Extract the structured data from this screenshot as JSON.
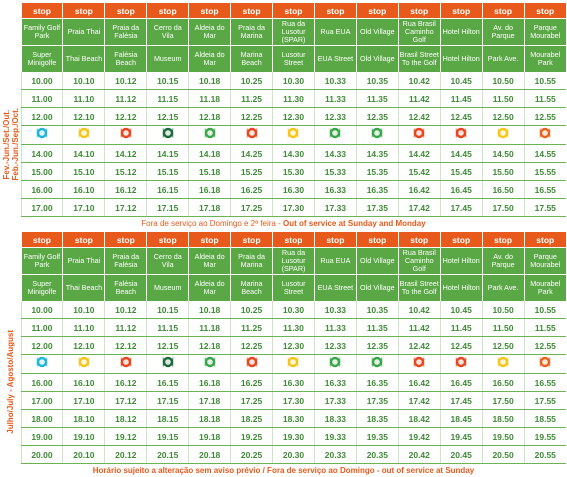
{
  "sections": [
    {
      "period": [
        "Fev.-Jun./Set./Out.",
        "Feb.-Jun./Sep./Oct."
      ],
      "header": [
        "stop",
        "stop",
        "stop",
        "stop",
        "stop",
        "stop",
        "stop",
        "stop",
        "stop",
        "stop",
        "stop",
        "stop",
        "stop"
      ],
      "names_pt": [
        "Family Golf Park",
        "Praia Thai",
        "Praia da Falésia",
        "Cerro da Vila",
        "Aldeia do Mar",
        "Praia da Marina",
        "Rua da Lusotur (SPAR)",
        "Rua EUA",
        "Old Village",
        "Rua Brasil Caminho Golf",
        "Hotel Hilton",
        "Av. do Parque",
        "Parque Mourabel"
      ],
      "names_en": [
        "Super Minigolfe",
        "Thai Beach",
        "Falésia Beach",
        "Museum",
        "Aldeia do Mar",
        "Marina Beach",
        "Lusotur Street",
        "EUA Street",
        "Old Village",
        "Brasil Street To the Golf",
        "Hotel Hilton",
        "Park Ave.",
        "Mourabel Park"
      ],
      "before_lunch": [
        [
          "10.00",
          "10.10",
          "10.12",
          "10.15",
          "10.18",
          "10.25",
          "10.30",
          "10.33",
          "10.35",
          "10.42",
          "10.45",
          "10.50",
          "10.55"
        ],
        [
          "11.00",
          "11.10",
          "11.12",
          "11.15",
          "11.18",
          "11.25",
          "11.30",
          "11.33",
          "11.35",
          "11.42",
          "11.45",
          "11.50",
          "11.55"
        ],
        [
          "12.00",
          "12.10",
          "12.12",
          "12.15",
          "12.18",
          "12.25",
          "12.30",
          "12.33",
          "12.35",
          "12.42",
          "12.45",
          "12.50",
          "12.55"
        ]
      ],
      "after_lunch": [
        [
          "14.00",
          "14.10",
          "14.12",
          "14.15",
          "14.18",
          "14.25",
          "14.30",
          "14.33",
          "14.35",
          "14.42",
          "14.45",
          "14.50",
          "14.55"
        ],
        [
          "15.00",
          "15.10",
          "15.12",
          "15.15",
          "15.18",
          "15.25",
          "15.30",
          "15.33",
          "15.35",
          "15.42",
          "15.45",
          "15.50",
          "15.55"
        ],
        [
          "16.00",
          "16.10",
          "16.12",
          "16.15",
          "16.18",
          "16.25",
          "16.30",
          "16.33",
          "16.35",
          "16.42",
          "16.45",
          "16.50",
          "16.55"
        ],
        [
          "17.00",
          "17.10",
          "17.12",
          "17.15",
          "17.18",
          "17.25",
          "17.30",
          "17.33",
          "17.35",
          "17.42",
          "17.45",
          "17.50",
          "17.55"
        ]
      ],
      "note": [
        "Fora de serviço ao Domingo e 2ª feira - ",
        "Out of service at Sunday and Monday"
      ]
    },
    {
      "period": [
        "Julho/July - Agosto/August"
      ],
      "header": [
        "stop",
        "stop",
        "stop",
        "stop",
        "stop",
        "stop",
        "stop",
        "stop",
        "stop",
        "stop",
        "stop",
        "stop",
        "stop"
      ],
      "names_pt": [
        "Family Golf Park",
        "Praia Thai",
        "Praia da Falésia",
        "Cerro da Vila",
        "Aldeia do Mar",
        "Praia da Marina",
        "Rua da Lusotur (SPAR)",
        "Rua EUA",
        "Old Village",
        "Rua Brasil Caminho Golf",
        "Hotel Hilton",
        "Av. do Parque",
        "Parque Mourabel"
      ],
      "names_en": [
        "Super Minigolfe",
        "Thai Beach",
        "Falésia Beach",
        "Museum",
        "Aldeia do Mar",
        "Marina Beach",
        "Lusotur Street",
        "EUA Street",
        "Old Village",
        "Brasil Street To the Golf",
        "Hotel Hilton",
        "Park Ave.",
        "Mourabel Park"
      ],
      "before_lunch": [
        [
          "10.00",
          "10.10",
          "10.12",
          "10.15",
          "10.18",
          "10.25",
          "10.30",
          "10.33",
          "10.35",
          "10.42",
          "10.45",
          "10.50",
          "10.55"
        ],
        [
          "11.00",
          "11.10",
          "11.12",
          "11.15",
          "11.18",
          "11.25",
          "11.30",
          "11.33",
          "11.35",
          "11.42",
          "11.45",
          "11.50",
          "11.55"
        ],
        [
          "12.00",
          "12.10",
          "12.12",
          "12.15",
          "12.18",
          "12.25",
          "12.30",
          "12.33",
          "12.35",
          "12.42",
          "12.45",
          "12.50",
          "12.55"
        ]
      ],
      "after_lunch": [
        [
          "16.00",
          "16.10",
          "16.12",
          "16.15",
          "16.18",
          "16.25",
          "16.30",
          "16.33",
          "16.35",
          "16.42",
          "16.45",
          "16.50",
          "16.55"
        ],
        [
          "17.00",
          "17.10",
          "17.12",
          "17.15",
          "17.18",
          "17.25",
          "17.30",
          "17.33",
          "17.35",
          "17.42",
          "17.45",
          "17.50",
          "17.55"
        ],
        [
          "18.00",
          "18.10",
          "18.12",
          "18.15",
          "18.18",
          "18.25",
          "18.30",
          "18.33",
          "18.35",
          "18.42",
          "18.45",
          "18.50",
          "18.55"
        ],
        [
          "19.00",
          "19.10",
          "19.12",
          "19.15",
          "19.18",
          "19.25",
          "19.30",
          "19.33",
          "19.35",
          "19.42",
          "19.45",
          "19.50",
          "19.55"
        ],
        [
          "20.00",
          "20.10",
          "20.12",
          "20.15",
          "20.18",
          "20.25",
          "20.30",
          "20.33",
          "20.35",
          "20.42",
          "20.45",
          "20.50",
          "20.55"
        ]
      ],
      "note": [
        "Horário sujeito a alteração sem aviso prévio / Fora de serviço ao Domingo - out of service at Sunday"
      ]
    }
  ]
}
